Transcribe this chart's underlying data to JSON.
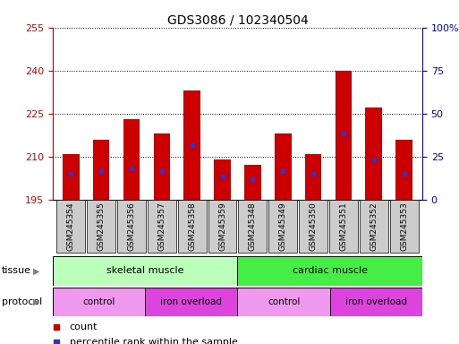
{
  "title": "GDS3086 / 102340504",
  "samples": [
    "GSM245354",
    "GSM245355",
    "GSM245356",
    "GSM245357",
    "GSM245358",
    "GSM245359",
    "GSM245348",
    "GSM245349",
    "GSM245350",
    "GSM245351",
    "GSM245352",
    "GSM245353"
  ],
  "bar_base": 195,
  "bar_tops": [
    211,
    216,
    223,
    218,
    233,
    209,
    207,
    218,
    211,
    240,
    227,
    216
  ],
  "percentile_values": [
    204,
    205,
    206,
    205,
    214,
    203,
    202,
    205,
    204,
    218,
    209,
    204
  ],
  "ylim_left": [
    195,
    255
  ],
  "yticks_left": [
    195,
    210,
    225,
    240,
    255
  ],
  "yticks_right": [
    0,
    25,
    50,
    75,
    100
  ],
  "bar_color": "#cc0000",
  "pct_color": "#3333cc",
  "tissue_groups": [
    {
      "label": "skeletal muscle",
      "start": 0,
      "end": 6,
      "color": "#bbffbb"
    },
    {
      "label": "cardiac muscle",
      "start": 6,
      "end": 12,
      "color": "#44ee44"
    }
  ],
  "protocol_groups": [
    {
      "label": "control",
      "start": 0,
      "end": 3,
      "color": "#ee99ee"
    },
    {
      "label": "iron overload",
      "start": 3,
      "end": 6,
      "color": "#dd44dd"
    },
    {
      "label": "control",
      "start": 6,
      "end": 9,
      "color": "#ee99ee"
    },
    {
      "label": "iron overload",
      "start": 9,
      "end": 12,
      "color": "#dd44dd"
    }
  ],
  "legend_count_color": "#cc0000",
  "legend_pct_color": "#3333cc",
  "bar_width": 0.55,
  "bg_color": "#ffffff",
  "tick_label_color_left": "#cc0000",
  "tick_label_color_right": "#0000cc",
  "grid_color": "#000000",
  "xticklabel_bg": "#cccccc"
}
